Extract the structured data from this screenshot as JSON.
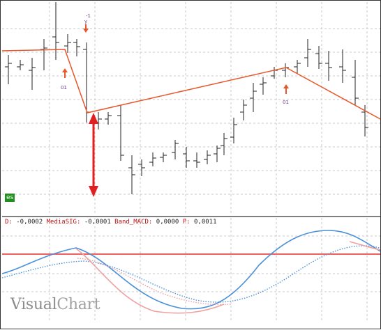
{
  "price_panel": {
    "tag": "es",
    "markers": [
      {
        "id": "top-mark",
        "text": "-1"
      },
      {
        "id": "left-mark",
        "text": "01"
      },
      {
        "id": "right-mark",
        "text": "01"
      }
    ]
  },
  "indicator_panel": {
    "legend": [
      {
        "label": "D: ",
        "value": "-0,0002"
      },
      {
        "label": " MediaSIG: ",
        "value": "-0,0001"
      },
      {
        "label": " Band_MACD: ",
        "value": "0,0000"
      },
      {
        "label": " P: ",
        "value": "0,0011"
      }
    ]
  },
  "brand": {
    "part1": "Visual",
    "part2": "Chart"
  },
  "colors": {
    "bars": "#222222",
    "zigzag": "#e8572a",
    "arrow": "#e02020",
    "macd": "#4a90d9",
    "signal_dotted": "#f0a0a0",
    "band_line": "#f06060",
    "legend_text": "#c01010",
    "grid": "#c8c8c8",
    "tag_bg": "#1f8f1f"
  },
  "icons": [
    "red-double-arrow-icon",
    "up-arrow-marker-icon",
    "down-arrow-marker-icon"
  ]
}
